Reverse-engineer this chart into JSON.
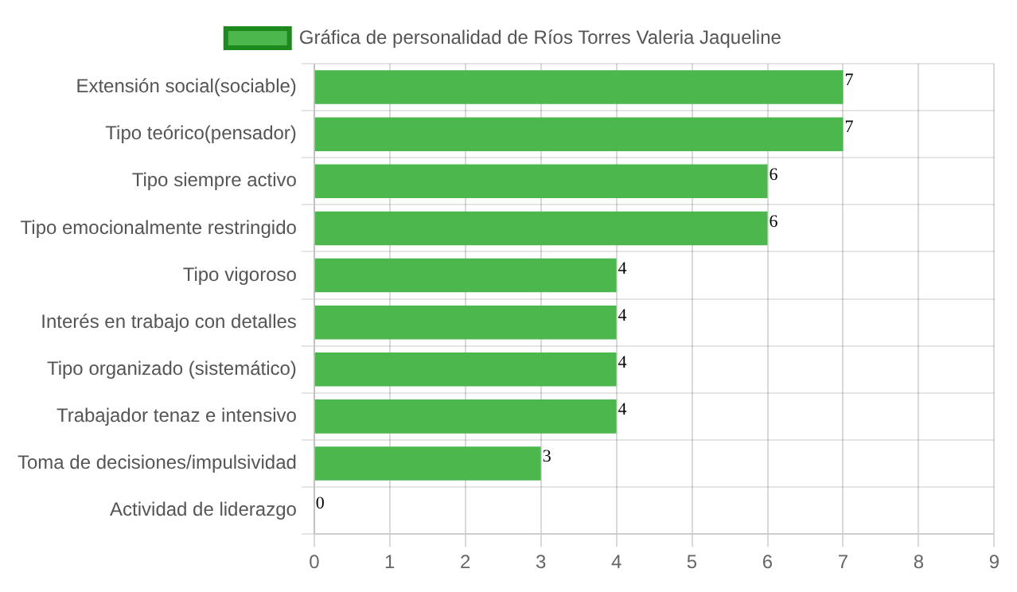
{
  "chart_data": {
    "type": "bar",
    "orientation": "horizontal",
    "categories": [
      "Extensión social(sociable)",
      "Tipo teórico(pensador)",
      "Tipo siempre activo",
      "Tipo emocionalmente restringido",
      "Tipo vigoroso",
      "Interés en trabajo con detalles",
      "Tipo organizado (sistemático)",
      "Trabajador tenaz e intensivo",
      "Toma de decisiones/impulsividad",
      "Actividad de liderazgo"
    ],
    "series": [
      {
        "name": "Gráfica de personalidad de Ríos Torres Valeria Jaqueline",
        "color": "#4cb74c",
        "values": [
          7,
          7,
          6,
          6,
          4,
          4,
          4,
          4,
          3,
          0
        ]
      }
    ],
    "xlim": [
      0,
      9
    ],
    "xticks": [
      0,
      1,
      2,
      3,
      4,
      5,
      6,
      7,
      8,
      9
    ],
    "grid": true,
    "legend": "top",
    "data_labels": true
  }
}
